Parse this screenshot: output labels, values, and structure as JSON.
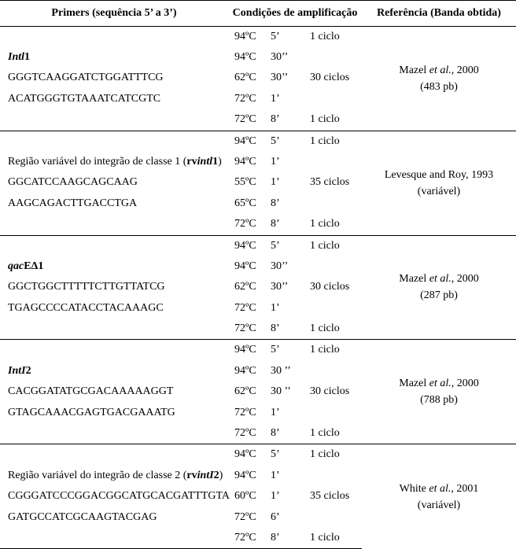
{
  "header": {
    "primers": "Primers (sequência 5’ a 3’)",
    "cond": "Condições de amplificação",
    "ref": "Referência (Banda obtida)"
  },
  "rows": [
    {
      "primer_lines": [
        {
          "html": "<span class='bold italic'>Intl</span><span class='bold'>1</span>"
        },
        {
          "html": "GGGTCAAGGATCTGGATTTCG"
        },
        {
          "html": "ACATGGGTGTAAATCATCGTC"
        }
      ],
      "cond": [
        {
          "t": "94ºC",
          "d": "5’",
          "c": "1 ciclo"
        },
        {
          "t": "94ºC",
          "d": "30’’",
          "c": ""
        },
        {
          "t": "62ºC",
          "d": "30’’",
          "c": "30 ciclos"
        },
        {
          "t": "72ºC",
          "d": "1’",
          "c": ""
        },
        {
          "t": "72ºC",
          "d": "8’",
          "c": "1 ciclo"
        }
      ],
      "ref": "Mazel <span class='italic'>et al.</span>, 2000<br>(483 pb)"
    },
    {
      "primer_lines": [
        {
          "html": "Região variável do integrão de classe 1 (<span class='bold'>rv</span><span class='bold italic'>intl</span><span class='bold'>1</span>)"
        },
        {
          "html": "GGCATCCAAGCAGCAAG"
        },
        {
          "html": "AAGCAGACTTGACCTGA"
        }
      ],
      "cond": [
        {
          "t": "94ºC",
          "d": "5’",
          "c": "1 ciclo"
        },
        {
          "t": "94ºC",
          "d": "1’",
          "c": ""
        },
        {
          "t": "55ºC",
          "d": "1’",
          "c": "35 ciclos"
        },
        {
          "t": "65ºC",
          "d": "8’",
          "c": ""
        },
        {
          "t": "72ºC",
          "d": "8’",
          "c": "1 ciclo"
        }
      ],
      "ref": "Levesque and Roy, 1993<br>(variável)"
    },
    {
      "primer_lines": [
        {
          "html": "<span class='bold italic'>qac</span><span class='bold'>EΔ1</span>"
        },
        {
          "html": "GGCTGGCTTTTTCTTGTTATCG"
        },
        {
          "html": "TGAGCCCCATACCTACAAAGC"
        }
      ],
      "cond": [
        {
          "t": "94ºC",
          "d": "5’",
          "c": "1 ciclo"
        },
        {
          "t": "94ºC",
          "d": "30’’",
          "c": ""
        },
        {
          "t": "62ºC",
          "d": "30’’",
          "c": "30 ciclos"
        },
        {
          "t": "72ºC",
          "d": "1’",
          "c": ""
        },
        {
          "t": "72ºC",
          "d": "8’",
          "c": "1 ciclo"
        }
      ],
      "ref": "Mazel <span class='italic'>et al.</span>, 2000<br>(287 pb)"
    },
    {
      "primer_lines": [
        {
          "html": "<span class='bold italic'>IntI</span><span class='bold'>2</span>"
        },
        {
          "html": "CACGGATATGCGACAAAAAGGT"
        },
        {
          "html": "GTAGCAAACGAGTGACGAAATG"
        }
      ],
      "cond": [
        {
          "t": "94ºC",
          "d": "5’",
          "c": "1 ciclo"
        },
        {
          "t": "94ºC",
          "d": "30 ’’",
          "c": ""
        },
        {
          "t": "62ºC",
          "d": "30 ’’",
          "c": "30 ciclos"
        },
        {
          "t": "72ºC",
          "d": "1’",
          "c": ""
        },
        {
          "t": "72ºC",
          "d": "8’",
          "c": "1 ciclo"
        }
      ],
      "ref": "Mazel <span class='italic'>et al.</span>, 2000<br>(788 pb)"
    },
    {
      "primer_lines": [
        {
          "html": "Região variável do integrão de classe 2 (<span class='bold'>rv</span><span class='bold italic'>intI</span><span class='bold'>2</span>)"
        },
        {
          "html": "CGGGATCCCGGACGGCATGCACGATTTGTA"
        },
        {
          "html": "GATGCCATCGCAAGTACGAG"
        }
      ],
      "cond": [
        {
          "t": "94ºC",
          "d": "5’",
          "c": "1 ciclo"
        },
        {
          "t": "94ºC",
          "d": "1’",
          "c": ""
        },
        {
          "t": "60ºC",
          "d": "1’",
          "c": "35 ciclos"
        },
        {
          "t": "72ºC",
          "d": "6’",
          "c": ""
        },
        {
          "t": "72ºC",
          "d": "8’",
          "c": "1 ciclo"
        }
      ],
      "ref": "White <span class='italic'>et al.</span>, 2001<br>(variável)"
    }
  ]
}
